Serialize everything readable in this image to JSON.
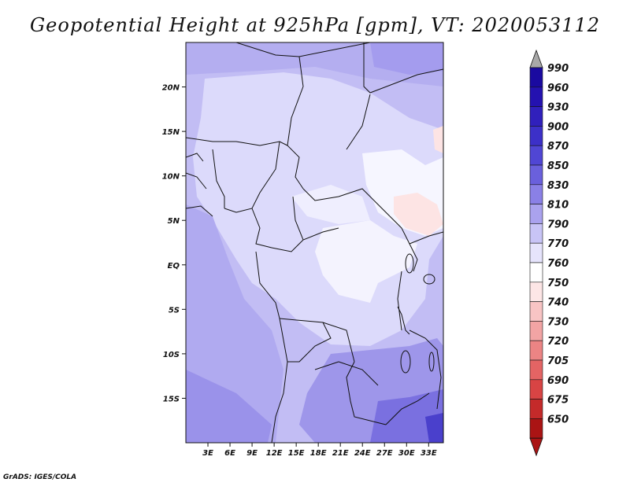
{
  "title": "Geopotential Height at 925hPa [gpm], VT: 2020053112",
  "credit": "GrADS: IGES/COLA",
  "map": {
    "lon_range": [
      0,
      35
    ],
    "lat_range": [
      -20,
      25
    ],
    "lon_ticks": [
      {
        "value": 3,
        "label": "3E"
      },
      {
        "value": 6,
        "label": "6E"
      },
      {
        "value": 9,
        "label": "9E"
      },
      {
        "value": 12,
        "label": "12E"
      },
      {
        "value": 15,
        "label": "15E"
      },
      {
        "value": 18,
        "label": "18E"
      },
      {
        "value": 21,
        "label": "21E"
      },
      {
        "value": 24,
        "label": "24E"
      },
      {
        "value": 27,
        "label": "27E"
      },
      {
        "value": 30,
        "label": "30E"
      },
      {
        "value": 33,
        "label": "33E"
      }
    ],
    "lat_ticks": [
      {
        "value": 20,
        "label": "20N"
      },
      {
        "value": 15,
        "label": "15N"
      },
      {
        "value": 10,
        "label": "10N"
      },
      {
        "value": 5,
        "label": "5N"
      },
      {
        "value": 0,
        "label": "EQ"
      },
      {
        "value": -5,
        "label": "5S"
      },
      {
        "value": -10,
        "label": "10S"
      },
      {
        "value": -15,
        "label": "15S"
      }
    ]
  },
  "colorbar": {
    "levels": [
      {
        "label": "990",
        "color": "#1a0aa0"
      },
      {
        "label": "960",
        "color": "#2412b0"
      },
      {
        "label": "930",
        "color": "#3020bc"
      },
      {
        "label": "900",
        "color": "#3c30c8"
      },
      {
        "label": "870",
        "color": "#5046d4"
      },
      {
        "label": "850",
        "color": "#6a60dc"
      },
      {
        "label": "830",
        "color": "#8a80e6"
      },
      {
        "label": "810",
        "color": "#aaa2ee"
      },
      {
        "label": "790",
        "color": "#c8c4f6"
      },
      {
        "label": "770",
        "color": "#e6e4fc"
      },
      {
        "label": "760",
        "color": "#ffffff"
      },
      {
        "label": "750",
        "color": "#fde6e6"
      },
      {
        "label": "740",
        "color": "#f8c4c4"
      },
      {
        "label": "730",
        "color": "#f2a4a4"
      },
      {
        "label": "720",
        "color": "#ec8484"
      },
      {
        "label": "705",
        "color": "#e46464"
      },
      {
        "label": "690",
        "color": "#d84444"
      },
      {
        "label": "675",
        "color": "#c42a2a"
      },
      {
        "label": "650",
        "color": "#aa1414"
      }
    ],
    "top_arrow_color": "#a8a8a8",
    "bottom_arrow_color": "#aa1414"
  }
}
